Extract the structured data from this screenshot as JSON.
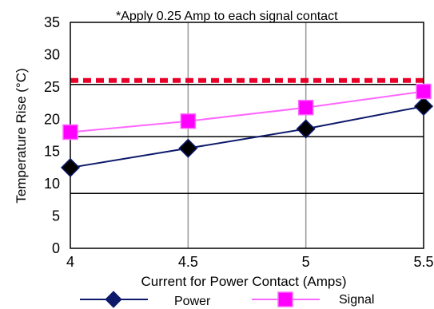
{
  "chart_data": {
    "type": "line",
    "title": "",
    "annotation": "*Apply 0.25 Amp to each signal contact",
    "xlabel": "Current for Power Contact (Amps)",
    "ylabel": "Temperature Rise (°C)",
    "x": [
      4,
      4.5,
      5,
      5.5
    ],
    "x_tick_labels": [
      "4",
      "4.5",
      "5",
      "5.5"
    ],
    "y_tick_labels": [
      "0",
      "5",
      "10",
      "15",
      "20",
      "25",
      "30",
      "35"
    ],
    "xlim": [
      4,
      5.5
    ],
    "ylim": [
      0,
      35
    ],
    "limit_line": {
      "value": 26,
      "color": "#e8002a",
      "style": "dashed"
    },
    "series": [
      {
        "name": "Power",
        "values": [
          12.5,
          15.5,
          18.5,
          22
        ],
        "color": "#0d1a6b",
        "marker": "diamond",
        "marker_color": "#000000"
      },
      {
        "name": "Signal",
        "values": [
          18,
          19.7,
          21.8,
          24.3
        ],
        "color": "#ff66ff",
        "marker": "square",
        "marker_color": "#ff00ff"
      }
    ],
    "grid": "vertical",
    "legend_position": "bottom"
  }
}
